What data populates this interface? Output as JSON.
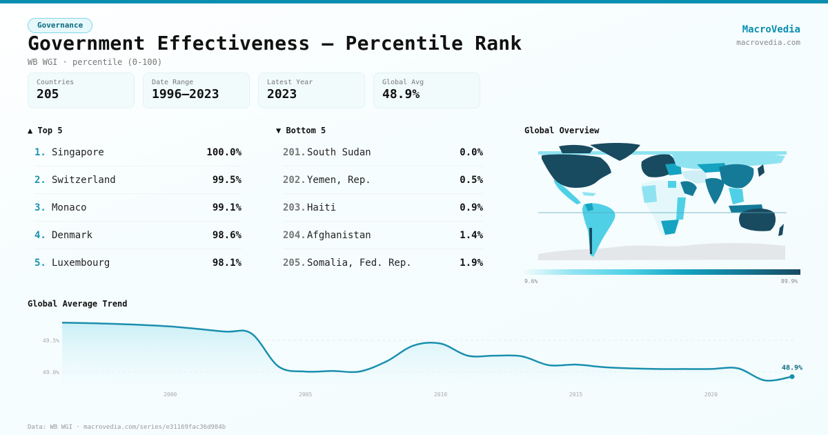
{
  "header": {
    "category_badge": "Governance",
    "title": "Government Effectiveness — Percentile Rank",
    "subtitle": "WB WGI · percentile (0-100)",
    "brand_name": "MacroVedia",
    "brand_url": "macrovedia.com"
  },
  "stats": [
    {
      "label": "Countries",
      "value": "205"
    },
    {
      "label": "Date Range",
      "value": "1996–2023"
    },
    {
      "label": "Latest Year",
      "value": "2023"
    },
    {
      "label": "Global Avg",
      "value": "48.9%"
    }
  ],
  "top5": {
    "heading": "▲ Top 5",
    "items": [
      {
        "rank": "1.",
        "name": "Singapore",
        "value": "100.0%"
      },
      {
        "rank": "2.",
        "name": "Switzerland",
        "value": "99.5%"
      },
      {
        "rank": "3.",
        "name": "Monaco",
        "value": "99.1%"
      },
      {
        "rank": "4.",
        "name": "Denmark",
        "value": "98.6%"
      },
      {
        "rank": "5.",
        "name": "Luxembourg",
        "value": "98.1%"
      }
    ]
  },
  "bottom5": {
    "heading": "▼ Bottom 5",
    "items": [
      {
        "rank": "201.",
        "name": "South Sudan",
        "value": "0.0%"
      },
      {
        "rank": "202.",
        "name": "Yemen, Rep.",
        "value": "0.5%"
      },
      {
        "rank": "203.",
        "name": "Haiti",
        "value": "0.9%"
      },
      {
        "rank": "204.",
        "name": "Afghanistan",
        "value": "1.4%"
      },
      {
        "rank": "205.",
        "name": "Somalia, Fed. Rep.",
        "value": "1.9%"
      }
    ]
  },
  "map": {
    "title": "Global Overview",
    "legend_min": "9.6%",
    "legend_max": "89.9%",
    "colors": {
      "low": "#f0fbfd",
      "mid_low": "#4fd0e6",
      "mid": "#15a3c1",
      "high": "#147a98",
      "top": "#184a60",
      "no_data": "#e4e7ea"
    }
  },
  "colors": {
    "accent": "#0a8fb0",
    "line": "#1a8fae",
    "area_top": "#c8eef6"
  },
  "chart_data": {
    "type": "area",
    "title": "Global Average Trend",
    "xlabel": "",
    "ylabel": "",
    "x": [
      1996,
      1998,
      2000,
      2002,
      2003,
      2004,
      2005,
      2006,
      2007,
      2008,
      2009,
      2010,
      2011,
      2012,
      2013,
      2014,
      2015,
      2016,
      2017,
      2018,
      2019,
      2020,
      2021,
      2022,
      2023
    ],
    "series": [
      {
        "name": "Global Average",
        "values": [
          49.78,
          49.76,
          49.72,
          49.64,
          49.61,
          49.09,
          49.01,
          49.02,
          49.01,
          49.17,
          49.42,
          49.45,
          49.26,
          49.26,
          49.25,
          49.11,
          49.12,
          49.08,
          49.06,
          49.05,
          49.05,
          49.05,
          49.06,
          48.87,
          48.93
        ]
      }
    ],
    "x_ticks": [
      "2000",
      "2005",
      "2010",
      "2015",
      "2020"
    ],
    "y_ticks": [
      "49.0%",
      "49.5%"
    ],
    "y_tick_values": [
      49.0,
      49.5
    ],
    "xlim": [
      1996,
      2023
    ],
    "ylim": [
      48.7,
      49.78
    ],
    "grid": true,
    "last_point_label": "48.9%"
  },
  "footer": "Data: WB WGI · macrovedia.com/series/e31169fac36d984b"
}
